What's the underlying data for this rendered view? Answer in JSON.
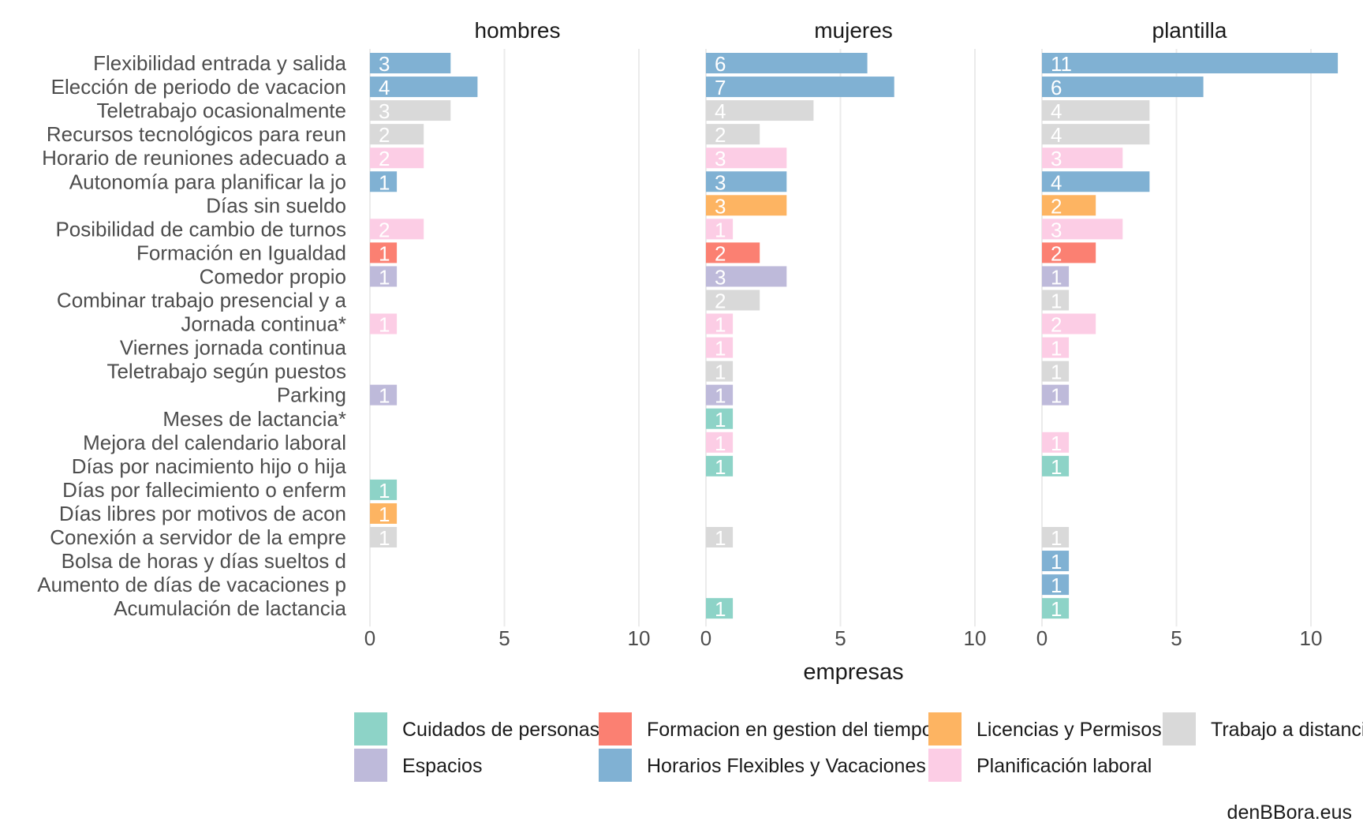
{
  "chart_data": {
    "type": "bar",
    "orientation": "horizontal",
    "facets": [
      "hombres",
      "mujeres",
      "plantilla"
    ],
    "categories": [
      "Flexibilidad entrada y salida",
      "Elección de periodo de vacacion",
      "Teletrabajo ocasionalmente",
      "Recursos tecnológicos para reun",
      "Horario de reuniones adecuado a",
      "Autonomía para planificar la jo",
      "Días sin sueldo",
      "Posibilidad de cambio de turnos",
      "Formación en Igualdad",
      "Comedor propio",
      "Combinar trabajo presencial y a",
      "Jornada continua*",
      "Viernes jornada continua",
      "Teletrabajo según puestos",
      "Parking",
      "Meses de lactancia*",
      "Mejora del calendario laboral",
      "Días por nacimiento hijo o hija",
      "Días por fallecimiento o enferm",
      "Días libres por motivos de acon",
      "Conexión a servidor de la empre",
      "Bolsa de horas y días sueltos d",
      "Aumento de días de vacaciones p",
      "Acumulación de lactancia"
    ],
    "category_groups": [
      "Horarios Flexibles y Vacaciones",
      "Horarios Flexibles y Vacaciones",
      "Trabajo a distancia",
      "Trabajo a distancia",
      "Planificación laboral",
      "Horarios Flexibles y Vacaciones",
      "Licencias y Permisos",
      "Planificación laboral",
      "Formacion en gestion del tiempo",
      "Espacios",
      "Trabajo a distancia",
      "Planificación laboral",
      "Planificación laboral",
      "Trabajo a distancia",
      "Espacios",
      "Cuidados de personas",
      "Planificación laboral",
      "Cuidados de personas",
      "Cuidados de personas",
      "Licencias y Permisos",
      "Trabajo a distancia",
      "Horarios Flexibles y Vacaciones",
      "Horarios Flexibles y Vacaciones",
      "Cuidados de personas"
    ],
    "series": [
      {
        "name": "hombres",
        "values": [
          3,
          4,
          3,
          2,
          2,
          1,
          null,
          2,
          1,
          1,
          null,
          1,
          null,
          null,
          1,
          null,
          null,
          null,
          1,
          1,
          1,
          null,
          null,
          null
        ]
      },
      {
        "name": "mujeres",
        "values": [
          6,
          7,
          4,
          2,
          3,
          3,
          3,
          1,
          2,
          3,
          2,
          1,
          1,
          1,
          1,
          1,
          1,
          1,
          null,
          null,
          1,
          null,
          null,
          1
        ]
      },
      {
        "name": "plantilla",
        "values": [
          11,
          6,
          4,
          4,
          3,
          4,
          2,
          3,
          2,
          1,
          1,
          2,
          1,
          1,
          1,
          null,
          1,
          1,
          null,
          null,
          1,
          1,
          1,
          1
        ]
      }
    ],
    "xlabel": "empresas",
    "ylabel": "",
    "xlim": [
      0,
      11.5
    ],
    "xticks": [
      0,
      5,
      10
    ],
    "grid": "vertical",
    "legend": {
      "position": "bottom",
      "entries": [
        {
          "label": "Cuidados de personas",
          "color": "#8dd3c7"
        },
        {
          "label": "Espacios",
          "color": "#bebada"
        },
        {
          "label": "Formacion en gestion del tiempo",
          "color": "#fb8072"
        },
        {
          "label": "Horarios Flexibles y Vacaciones",
          "color": "#80b1d3"
        },
        {
          "label": "Licencias y Permisos",
          "color": "#fdb462"
        },
        {
          "label": "Planificación laboral",
          "color": "#fccde5"
        },
        {
          "label": "Trabajo a distancia",
          "color": "#d9d9d9"
        }
      ]
    },
    "caption": "denBBora.eus"
  }
}
